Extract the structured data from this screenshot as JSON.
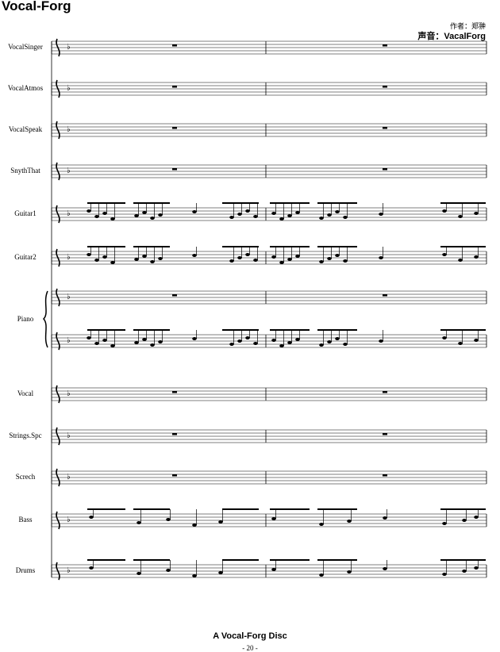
{
  "header": {
    "title": "Vocal-Forg",
    "composer": "作者：郑翀",
    "voice": "声音：VacalForg"
  },
  "staves": [
    "VocalSinger",
    "VocalAtmos",
    "VocalSpeak",
    "SnythThat",
    "Guitar1",
    "Guitar2",
    "Piano",
    "Vocal",
    "Strings.Spc",
    "Screch",
    "Bass",
    "Drums"
  ],
  "footer": {
    "disc": "A Vocal-Forg Disc",
    "page": "- 20 -"
  }
}
